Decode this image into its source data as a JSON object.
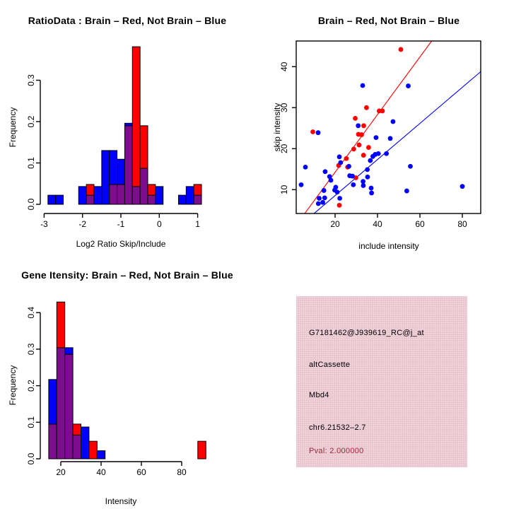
{
  "figure": {
    "background": "#FFFFFF",
    "colors": {
      "red": "#FF0000",
      "blue": "#0000FF",
      "overlap_purple": "#7D0D8D",
      "axis": "#000000",
      "info_bg": "#EAC5CF",
      "pval_text": "#A02834"
    },
    "legend_note": "Brain = red, Not Brain = blue; purple = overlap of the two histograms"
  },
  "chart_data": [
    {
      "type": "bar",
      "subtype": "overlaid-histogram",
      "title": "RatioData : Brain – Red, Not Brain – Blue",
      "xlabel": "Log2 Ratio Skip/Include",
      "ylabel": "Frequency",
      "xticks": [
        -3,
        -2,
        -1,
        0,
        1
      ],
      "yticks": [
        0,
        0.1,
        0.2,
        0.3
      ],
      "ytick_labels": [
        "0.0",
        "0.1",
        "0.2",
        "0.3"
      ],
      "xlim": [
        -3,
        1.3
      ],
      "ylim": [
        0,
        0.381
      ],
      "bin_width": 0.2,
      "grid": false,
      "bins_columns": [
        "bin_start",
        "freq_not_brain_blue",
        "freq_brain_red"
      ],
      "bins": [
        [
          -2.9,
          0.022,
          0
        ],
        [
          -2.7,
          0.022,
          0
        ],
        [
          -2.1,
          0.043,
          0
        ],
        [
          -1.9,
          0.022,
          0.048
        ],
        [
          -1.7,
          0.043,
          0
        ],
        [
          -1.5,
          0.13,
          0
        ],
        [
          -1.3,
          0.13,
          0.048
        ],
        [
          -1.1,
          0.109,
          0.048
        ],
        [
          -0.9,
          0.196,
          0.19
        ],
        [
          -0.7,
          0.043,
          0.381
        ],
        [
          -0.5,
          0.087,
          0.19
        ],
        [
          -0.3,
          0.022,
          0.048
        ],
        [
          -0.1,
          0.043,
          0
        ],
        [
          0.5,
          0.022,
          0
        ],
        [
          0.7,
          0.043,
          0
        ],
        [
          0.9,
          0.022,
          0.048
        ]
      ]
    },
    {
      "type": "scatter",
      "title": "Brain – Red, Not Brain – Blue",
      "xlabel": "include intensity",
      "ylabel": "skip intensity",
      "xticks": [
        20,
        40,
        60,
        80
      ],
      "yticks": [
        10,
        20,
        30,
        40
      ],
      "xlim": [
        2,
        89
      ],
      "ylim": [
        4.2,
        46.3
      ],
      "grid": false,
      "legend_position": "none",
      "series": [
        {
          "name": "Brain",
          "color_key": "red",
          "fit_line": [
            5.7,
            4.2,
            65.6,
            46.3
          ],
          "points": [
            [
              51,
              44.2
            ],
            [
              34.8,
              30
            ],
            [
              40.8,
              29.2
            ],
            [
              42.3,
              29.2
            ],
            [
              29.5,
              27.4
            ],
            [
              33.5,
              25.6
            ],
            [
              9.5,
              24.1
            ],
            [
              31,
              23.5
            ],
            [
              32.5,
              23.4
            ],
            [
              31.3,
              20.9
            ],
            [
              35.8,
              20.3
            ],
            [
              28.8,
              19.9
            ],
            [
              33.4,
              18.4
            ],
            [
              25.3,
              17.6
            ],
            [
              21.7,
              15.9
            ],
            [
              25.9,
              15.5
            ],
            [
              29.8,
              12.9
            ],
            [
              22,
              6.2
            ]
          ]
        },
        {
          "name": "Not Brain",
          "color_key": "blue",
          "fit_line": [
            10.1,
            4.2,
            88.7,
            38.8
          ],
          "points": [
            [
              33,
              35.4
            ],
            [
              54.5,
              35.3
            ],
            [
              47.3,
              26.6
            ],
            [
              30.9,
              25.6
            ],
            [
              12,
              23.9
            ],
            [
              39.3,
              22.7
            ],
            [
              46,
              22.5
            ],
            [
              44.2,
              18.8
            ],
            [
              40.4,
              18.8
            ],
            [
              38.9,
              18.6
            ],
            [
              37.8,
              18.1
            ],
            [
              22,
              18
            ],
            [
              22.6,
              16.6
            ],
            [
              26.5,
              15.7
            ],
            [
              6,
              15.5
            ],
            [
              55.5,
              15.7
            ],
            [
              36.6,
              17.1
            ],
            [
              15.3,
              14.4
            ],
            [
              35.2,
              14.9
            ],
            [
              17.4,
              13.2
            ],
            [
              26.9,
              13.4
            ],
            [
              28.2,
              13.3
            ],
            [
              33.2,
              12
            ],
            [
              35.3,
              13.1
            ],
            [
              18,
              12.3
            ],
            [
              4,
              11.2
            ],
            [
              80,
              10.8
            ],
            [
              28.6,
              11.2
            ],
            [
              33.3,
              11
            ],
            [
              20.3,
              10.6
            ],
            [
              37,
              10.4
            ],
            [
              14.7,
              9.8
            ],
            [
              21,
              9.4
            ],
            [
              53.8,
              9.7
            ],
            [
              37.2,
              9.2
            ],
            [
              12.5,
              7.9
            ],
            [
              15.1,
              8
            ],
            [
              22.2,
              7.9
            ],
            [
              12.1,
              6.6
            ],
            [
              14.2,
              6.9
            ],
            [
              19.8,
              9.9
            ]
          ]
        }
      ]
    },
    {
      "type": "bar",
      "subtype": "overlaid-histogram",
      "title": "Gene Itensity: Brain – Red, Not Brain – Blue",
      "xlabel": "Intensity",
      "ylabel": "Frequency",
      "xticks": [
        20,
        40,
        60,
        80
      ],
      "yticks": [
        0,
        0.1,
        0.2,
        0.3,
        0.4
      ],
      "ytick_labels": [
        "0.0",
        "0.1",
        "0.2",
        "0.3",
        "0.4"
      ],
      "xlim": [
        12,
        94
      ],
      "ylim": [
        0,
        0.429
      ],
      "bin_width": 4,
      "grid": false,
      "bins_columns": [
        "bin_start",
        "freq_not_brain_blue",
        "freq_brain_red"
      ],
      "bins": [
        [
          14,
          0.217,
          0.095
        ],
        [
          18,
          0.304,
          0.429
        ],
        [
          22,
          0.304,
          0.286
        ],
        [
          26,
          0.065,
          0.095
        ],
        [
          30,
          0.087,
          0
        ],
        [
          34,
          0,
          0.048
        ],
        [
          38,
          0.022,
          0
        ],
        [
          88,
          0,
          0.048
        ]
      ]
    }
  ],
  "info_panel": {
    "probe_id": "G7181462@J939619_RC@j_at",
    "event_type": "altCassette",
    "gene": "Mbd4",
    "location": "chr6.21532–2.7",
    "pval": "Pval: 2.000000"
  }
}
